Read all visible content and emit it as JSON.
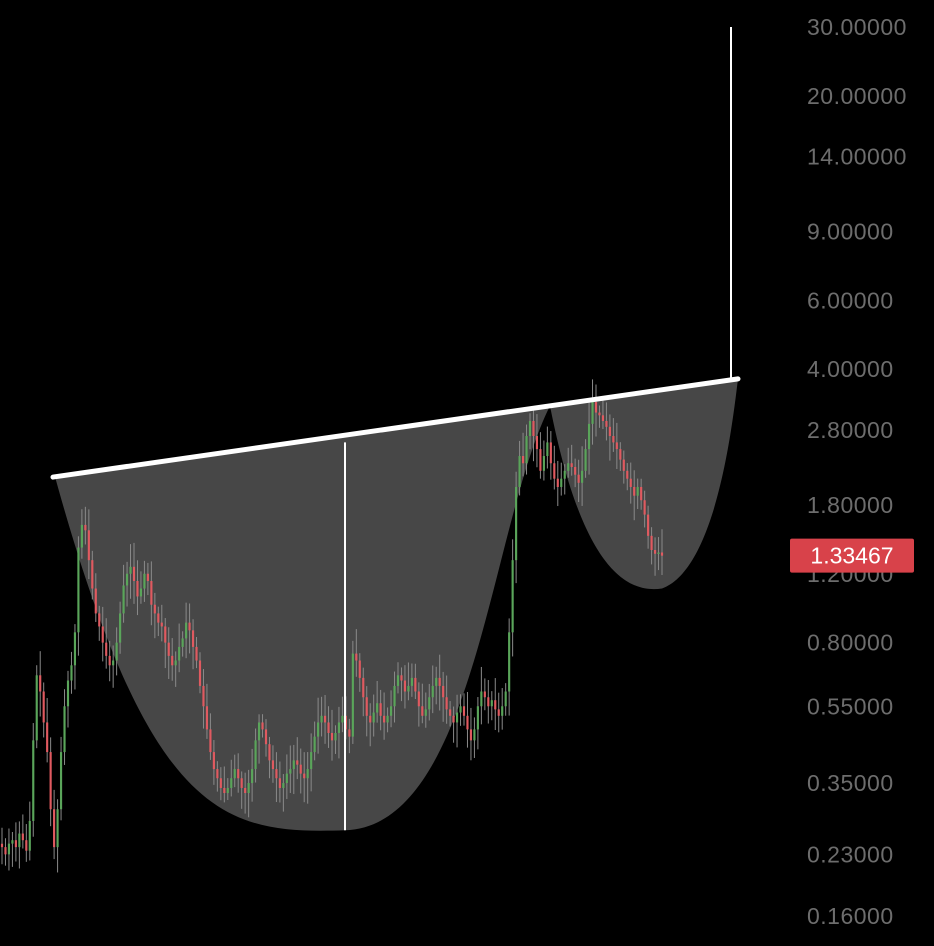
{
  "chart_data": {
    "type": "candlestick",
    "scale": "log",
    "y_ticks": [
      30,
      20,
      14,
      9,
      6,
      4,
      2.8,
      1.8,
      1.2,
      0.8,
      0.55,
      0.35,
      0.23,
      0.16
    ],
    "y_tick_labels": [
      "30.00000",
      "20.00000",
      "14.00000",
      "9.00000",
      "6.00000",
      "4.00000",
      "2.80000",
      "1.80000",
      "1.20000",
      "0.80000",
      "0.55000",
      "0.35000",
      "0.23000",
      "0.16000"
    ],
    "ylim": [
      0.145,
      34
    ],
    "current_price": 1.33467,
    "current_price_label": "1.33467",
    "grid": false,
    "candle_closes": [
      0.24,
      0.23,
      0.245,
      0.25,
      0.24,
      0.26,
      0.25,
      0.235,
      0.28,
      0.45,
      0.66,
      0.6,
      0.5,
      0.42,
      0.3,
      0.24,
      0.3,
      0.42,
      0.55,
      0.64,
      0.7,
      0.85,
      1.4,
      1.6,
      1.55,
      1.3,
      1.1,
      0.95,
      0.88,
      0.8,
      0.74,
      0.7,
      0.72,
      0.8,
      0.95,
      1.12,
      1.2,
      1.25,
      1.15,
      1.05,
      1.1,
      1.2,
      1.15,
      1.0,
      0.95,
      0.9,
      0.88,
      0.8,
      0.74,
      0.7,
      0.72,
      0.78,
      0.82,
      0.9,
      0.86,
      0.78,
      0.72,
      0.62,
      0.55,
      0.48,
      0.42,
      0.38,
      0.36,
      0.34,
      0.33,
      0.34,
      0.36,
      0.38,
      0.36,
      0.34,
      0.33,
      0.35,
      0.38,
      0.45,
      0.5,
      0.48,
      0.44,
      0.4,
      0.38,
      0.36,
      0.34,
      0.35,
      0.37,
      0.38,
      0.4,
      0.39,
      0.37,
      0.36,
      0.38,
      0.42,
      0.46,
      0.5,
      0.52,
      0.5,
      0.47,
      0.45,
      0.47,
      0.5,
      0.52,
      0.48,
      0.46,
      0.75,
      0.72,
      0.65,
      0.58,
      0.52,
      0.5,
      0.53,
      0.56,
      0.52,
      0.5,
      0.52,
      0.55,
      0.62,
      0.66,
      0.64,
      0.6,
      0.62,
      0.65,
      0.6,
      0.55,
      0.52,
      0.54,
      0.58,
      0.62,
      0.65,
      0.62,
      0.58,
      0.54,
      0.52,
      0.5,
      0.53,
      0.55,
      0.52,
      0.48,
      0.45,
      0.48,
      0.55,
      0.6,
      0.58,
      0.55,
      0.57,
      0.54,
      0.52,
      0.55,
      0.6,
      0.85,
      1.3,
      2.0,
      2.4,
      2.3,
      2.7,
      2.95,
      2.7,
      2.5,
      2.2,
      2.4,
      2.6,
      2.3,
      2.1,
      2.0,
      2.1,
      2.2,
      2.3,
      2.25,
      2.15,
      2.05,
      2.2,
      2.5,
      2.9,
      3.3,
      3.1,
      3.05,
      2.95,
      2.85,
      2.7,
      2.6,
      2.5,
      2.35,
      2.2,
      2.1,
      2.0,
      1.9,
      2.0,
      1.85,
      1.7,
      1.5,
      1.38,
      1.35,
      1.36,
      1.33467
    ],
    "resistance_line": {
      "from": 2.12,
      "to": 3.78
    },
    "cup": {
      "bottom": 0.265,
      "rim_left": 2.12,
      "rim_right": 3.06
    },
    "handle": {
      "bottom": 1.1,
      "rim_left": 2.9,
      "rim_right": 3.78
    },
    "depth_line": {
      "from": 0.265,
      "to": 2.6
    },
    "target_line": {
      "from": 3.78,
      "to": 30
    },
    "colors": {
      "up": "#5aa55a",
      "down": "#e05a60",
      "fill": "#474747",
      "lines": "#ffffff",
      "axis_text": "#6d6d6d",
      "price_tag_bg": "#d8424a"
    }
  }
}
